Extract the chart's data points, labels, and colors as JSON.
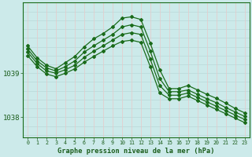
{
  "title": "Graphe pression niveau de la mer (hPa)",
  "background_color": "#cceaea",
  "line_color": "#1a6b1a",
  "vgrid_color": "#e8c8c8",
  "hgrid_color": "#b8d8d8",
  "text_color": "#1a5c1a",
  "xlim": [
    -0.5,
    23.5
  ],
  "ylim": [
    1037.55,
    1040.6
  ],
  "yticks": [
    1038.0,
    1039.0
  ],
  "series": [
    [
      1039.62,
      1039.35,
      1039.18,
      1039.1,
      1039.24,
      1039.38,
      1039.6,
      1039.78,
      1039.9,
      1040.05,
      1040.25,
      1040.28,
      1040.22,
      1039.68,
      1039.08,
      1038.65,
      1038.65,
      1038.72,
      1038.62,
      1038.52,
      1038.43,
      1038.32,
      1038.2,
      1038.1
    ],
    [
      1039.55,
      1039.28,
      1039.12,
      1039.05,
      1039.15,
      1039.28,
      1039.48,
      1039.62,
      1039.75,
      1039.88,
      1040.05,
      1040.1,
      1040.05,
      1039.5,
      1038.88,
      1038.58,
      1038.58,
      1038.62,
      1038.52,
      1038.42,
      1038.33,
      1038.22,
      1038.12,
      1038.02
    ],
    [
      1039.48,
      1039.22,
      1039.05,
      1039.0,
      1039.08,
      1039.18,
      1039.36,
      1039.5,
      1039.62,
      1039.75,
      1039.88,
      1039.92,
      1039.88,
      1039.32,
      1038.72,
      1038.5,
      1038.5,
      1038.55,
      1038.45,
      1038.35,
      1038.25,
      1038.15,
      1038.05,
      1037.95
    ],
    [
      1039.4,
      1039.15,
      1038.98,
      1038.92,
      1039.0,
      1039.1,
      1039.25,
      1039.38,
      1039.5,
      1039.62,
      1039.72,
      1039.75,
      1039.7,
      1039.15,
      1038.55,
      1038.42,
      1038.42,
      1038.48,
      1038.38,
      1038.28,
      1038.18,
      1038.08,
      1037.98,
      1037.88
    ]
  ],
  "xtick_labels": [
    "0",
    "1",
    "2",
    "3",
    "4",
    "5",
    "6",
    "7",
    "8",
    "9",
    "10",
    "11",
    "12",
    "13",
    "14",
    "15",
    "16",
    "17",
    "18",
    "19",
    "20",
    "21",
    "22",
    "23"
  ],
  "marker": "D",
  "markersize": 2.0,
  "linewidth": 0.9
}
